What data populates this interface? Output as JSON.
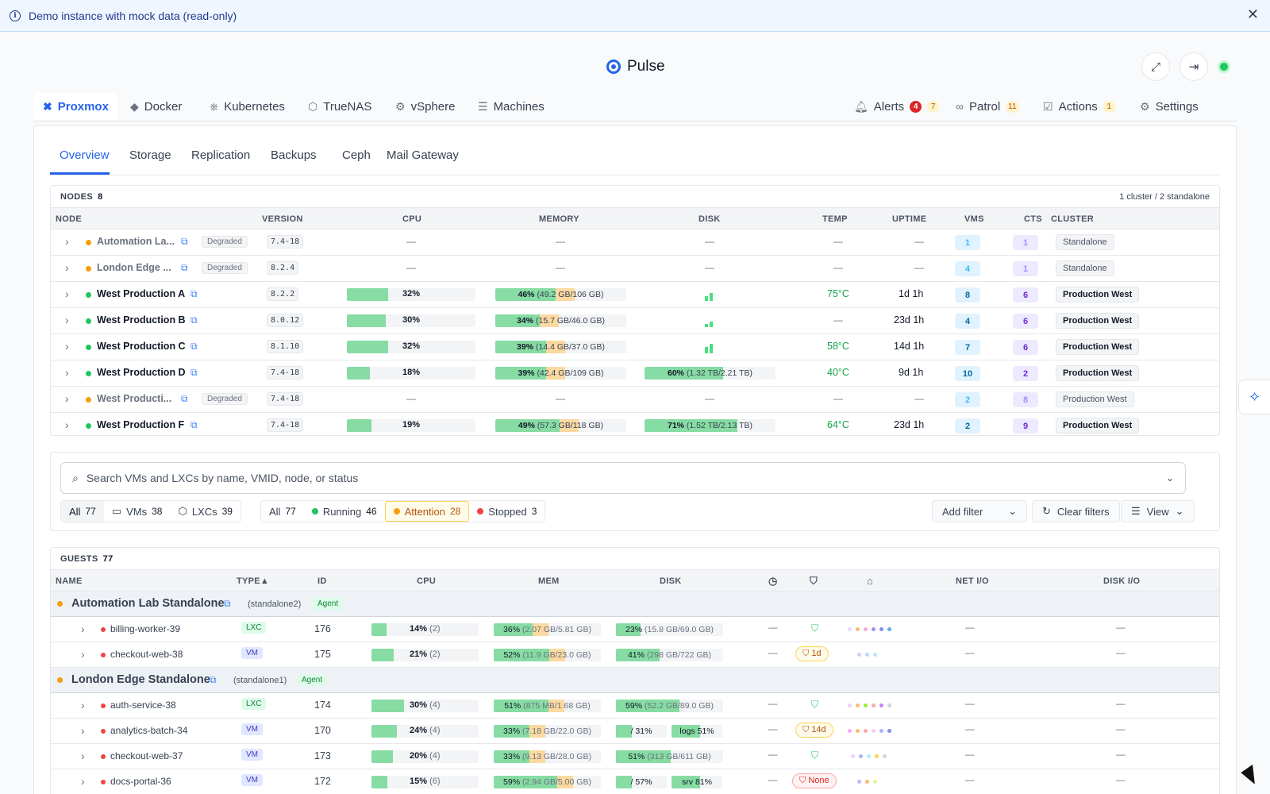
{
  "banner": {
    "text": "Demo instance with mock data (read-only)",
    "close": "✕"
  },
  "app": {
    "title": "Pulse"
  },
  "platform_tabs": [
    {
      "label": "Proxmox",
      "icon": "proxmox-icon"
    },
    {
      "label": "Docker",
      "icon": "docker-icon"
    },
    {
      "label": "Kubernetes",
      "icon": "kubernetes-icon"
    },
    {
      "label": "TrueNAS",
      "icon": "truenas-icon"
    },
    {
      "label": "vSphere",
      "icon": "vsphere-icon"
    },
    {
      "label": "Machines",
      "icon": "server-icon"
    }
  ],
  "right_tabs": {
    "alerts": {
      "label": "Alerts",
      "critical": "4",
      "warning": "7"
    },
    "patrol": {
      "label": "Patrol",
      "count": "11"
    },
    "actions": {
      "label": "Actions",
      "count": "1"
    },
    "settings": {
      "label": "Settings"
    }
  },
  "sub_tabs": [
    "Overview",
    "Storage",
    "Replication",
    "Backups",
    "Ceph",
    "Mail Gateway"
  ],
  "nodes": {
    "title": "NODES",
    "count": "8",
    "summary": "1 cluster / 2 standalone",
    "columns": [
      "NODE",
      "VERSION",
      "CPU",
      "MEMORY",
      "DISK",
      "TEMP",
      "UPTIME",
      "VMS",
      "CTS",
      "CLUSTER"
    ],
    "rows": [
      {
        "name": "Automation La...",
        "status": "degraded",
        "badge": "Degraded",
        "version": "7.4-18",
        "cpu": "—",
        "mem": "—",
        "disk": "—",
        "temp": "—",
        "uptime": "—",
        "vms": "1",
        "cts": "1",
        "cluster": "Standalone"
      },
      {
        "name": "London Edge ...",
        "status": "degraded",
        "badge": "Degraded",
        "version": "8.2.4",
        "cpu": "—",
        "mem": "—",
        "disk": "—",
        "temp": "—",
        "uptime": "—",
        "vms": "4",
        "cts": "1",
        "cluster": "Standalone"
      },
      {
        "name": "West Production A",
        "status": "online",
        "version": "8.2.2",
        "cpu": "32%",
        "cpu_frac": 0.32,
        "mem_pct": "46%",
        "mem_detail": "(49.2 GB/106 GB)",
        "mem_frac": 0.46,
        "disk": "",
        "temp": "75°C",
        "uptime": "1d 1h",
        "vms": "8",
        "cts": "6",
        "cluster": "Production West"
      },
      {
        "name": "West Production B",
        "status": "online",
        "version": "8.0.12",
        "cpu": "30%",
        "cpu_frac": 0.3,
        "mem_pct": "34%",
        "mem_detail": "(15.7 GB/46.0 GB)",
        "mem_frac": 0.34,
        "disk": "",
        "temp": "—",
        "uptime": "23d 1h",
        "vms": "4",
        "cts": "6",
        "cluster": "Production West"
      },
      {
        "name": "West Production C",
        "status": "online",
        "version": "8.1.10",
        "cpu": "32%",
        "cpu_frac": 0.32,
        "mem_pct": "39%",
        "mem_detail": "(14.4 GB/37.0 GB)",
        "mem_frac": 0.39,
        "disk": "",
        "temp": "58°C",
        "uptime": "14d 1h",
        "vms": "7",
        "cts": "6",
        "cluster": "Production West"
      },
      {
        "name": "West Production D",
        "status": "online",
        "version": "7.4-18",
        "cpu": "18%",
        "cpu_frac": 0.18,
        "mem_pct": "39%",
        "mem_detail": "(42.4 GB/109 GB)",
        "mem_frac": 0.39,
        "disk_pct": "60%",
        "disk_detail": "(1.32 TB/2.21 TB)",
        "disk_frac": 0.6,
        "temp": "40°C",
        "uptime": "9d 1h",
        "vms": "10",
        "cts": "2",
        "cluster": "Production West"
      },
      {
        "name": "West Producti...",
        "status": "degraded",
        "badge": "Degraded",
        "version": "7.4-18",
        "cpu": "—",
        "mem": "—",
        "disk": "—",
        "temp": "—",
        "uptime": "—",
        "vms": "2",
        "cts": "8",
        "cluster": "Production West"
      },
      {
        "name": "West Production F",
        "status": "online",
        "version": "7.4-18",
        "cpu": "19%",
        "cpu_frac": 0.19,
        "mem_pct": "49%",
        "mem_detail": "(57.3 GB/118 GB)",
        "mem_frac": 0.49,
        "disk_pct": "71%",
        "disk_detail": "(1.52 TB/2.13 TB)",
        "disk_frac": 0.71,
        "temp": "64°C",
        "uptime": "23d 1h",
        "vms": "2",
        "cts": "9",
        "cluster": "Production West"
      }
    ]
  },
  "filters": {
    "search_placeholder": "Search VMs and LXCs by name, VMID, node, or status",
    "type": [
      {
        "label": "All",
        "count": "77"
      },
      {
        "label": "VMs",
        "count": "38"
      },
      {
        "label": "LXCs",
        "count": "39"
      }
    ],
    "status": [
      {
        "label": "All",
        "count": "77"
      },
      {
        "label": "Running",
        "count": "46"
      },
      {
        "label": "Attention",
        "count": "28"
      },
      {
        "label": "Stopped",
        "count": "3"
      }
    ],
    "add_filter": "Add filter",
    "clear": "Clear filters",
    "view": "View"
  },
  "guests": {
    "title": "GUESTS",
    "count": "77",
    "columns": {
      "name": "NAME",
      "type": "TYPE▲",
      "id": "ID",
      "cpu": "CPU",
      "mem": "MEM",
      "disk": "DISK",
      "netio": "NET I/O",
      "diskio": "DISK I/O"
    },
    "groups": [
      {
        "name": "Automation Lab Standalone",
        "node": "(standalone2)",
        "badge": "Agent"
      },
      {
        "name": "London Edge Standalone",
        "node": "(standalone1)",
        "badge": "Agent"
      }
    ],
    "rows": [
      {
        "name": "billing-worker-39",
        "type": "LXC",
        "id": "176",
        "cpu": "14%",
        "cores": "(2)",
        "cpu_frac": 0.14,
        "mem_pct": "36%",
        "mem_detail": "(2.07 GB/5.81 GB)",
        "mem_frac": 0.36,
        "disk_pct": "23%",
        "disk_detail": "(15.8 GB/69.0 GB)",
        "disk_frac": 0.23,
        "backup": "ok",
        "net": "—",
        "dio": "—"
      },
      {
        "name": "checkout-web-38",
        "type": "VM",
        "id": "175",
        "cpu": "21%",
        "cores": "(2)",
        "cpu_frac": 0.21,
        "mem_pct": "52%",
        "mem_detail": "(11.9 GB/23.0 GB)",
        "mem_frac": 0.52,
        "disk_pct": "41%",
        "disk_detail": "(298 GB/722 GB)",
        "disk_frac": 0.41,
        "backup": "1d",
        "net": "—",
        "dio": "—"
      },
      {
        "name": "auth-service-38",
        "type": "LXC",
        "id": "174",
        "cpu": "30%",
        "cores": "(4)",
        "cpu_frac": 0.3,
        "mem_pct": "51%",
        "mem_detail": "(875 MB/1.68 GB)",
        "mem_frac": 0.51,
        "disk_pct": "59%",
        "disk_detail": "(52.2 GB/89.0 GB)",
        "disk_frac": 0.59,
        "backup": "ok",
        "net": "—",
        "dio": "—"
      },
      {
        "name": "analytics-batch-34",
        "type": "VM",
        "id": "170",
        "cpu": "24%",
        "cores": "(4)",
        "cpu_frac": 0.24,
        "mem_pct": "33%",
        "mem_detail": "(7.18 GB/22.0 GB)",
        "mem_frac": 0.33,
        "disk_a": "/ 31%",
        "disk_b": "logs 51%",
        "backup": "14d",
        "net": "—",
        "dio": "—"
      },
      {
        "name": "checkout-web-37",
        "type": "VM",
        "id": "173",
        "cpu": "20%",
        "cores": "(4)",
        "cpu_frac": 0.2,
        "mem_pct": "33%",
        "mem_detail": "(9.13 GB/28.0 GB)",
        "mem_frac": 0.33,
        "disk_pct": "51%",
        "disk_detail": "(313 GB/611 GB)",
        "disk_frac": 0.51,
        "backup": "ok",
        "net": "—",
        "dio": "—"
      },
      {
        "name": "docs-portal-36",
        "type": "VM",
        "id": "172",
        "cpu": "15%",
        "cores": "(6)",
        "cpu_frac": 0.15,
        "mem_pct": "59%",
        "mem_detail": "(2.94 GB/5.00 GB)",
        "mem_frac": 0.59,
        "disk_a": "/ 57%",
        "disk_b": "srv 81%",
        "backup": "None",
        "net": "—",
        "dio": "—"
      }
    ]
  }
}
